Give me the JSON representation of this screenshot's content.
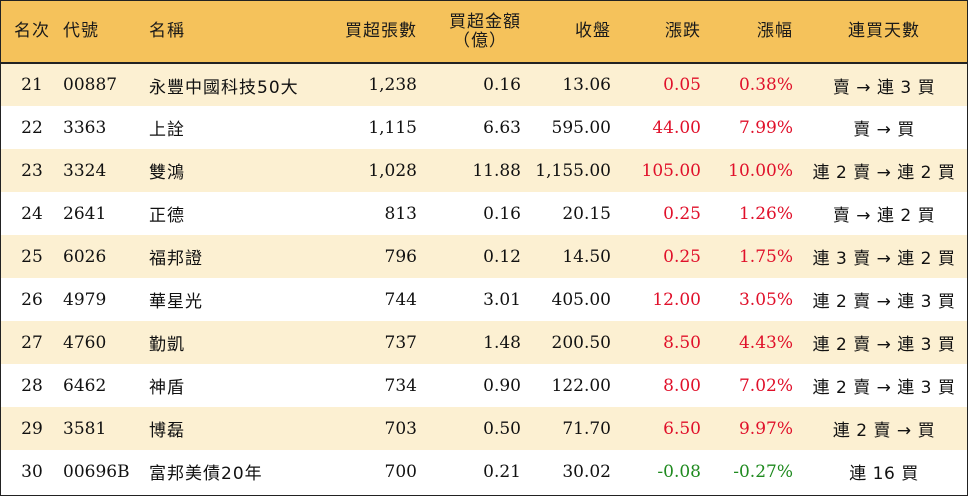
{
  "header": {
    "rank": "名次",
    "code": "代號",
    "name": "名稱",
    "net_buy_lots": "買超張數",
    "net_buy_amount_line1": "買超金額",
    "net_buy_amount_line2": "（億）",
    "close": "收盤",
    "change": "漲跌",
    "change_pct": "漲幅",
    "streak": "連買天數"
  },
  "colors": {
    "header_bg": "#f5c25b",
    "band_bg": "#fcf0d2",
    "up": "#e0102a",
    "down": "#1f8a1f"
  },
  "rows": [
    {
      "rank": "21",
      "code": "00887",
      "name": "永豐中國科技50大",
      "lots": "1,238",
      "amount": "0.16",
      "close": "13.06",
      "change": "0.05",
      "pct": "0.38%",
      "dir": "up",
      "streak": "賣 → 連 3 買"
    },
    {
      "rank": "22",
      "code": "3363",
      "name": "上詮",
      "lots": "1,115",
      "amount": "6.63",
      "close": "595.00",
      "change": "44.00",
      "pct": "7.99%",
      "dir": "up",
      "streak": "賣 → 買"
    },
    {
      "rank": "23",
      "code": "3324",
      "name": "雙鴻",
      "lots": "1,028",
      "amount": "11.88",
      "close": "1,155.00",
      "change": "105.00",
      "pct": "10.00%",
      "dir": "up",
      "streak": "連 2 賣 → 連 2 買"
    },
    {
      "rank": "24",
      "code": "2641",
      "name": "正德",
      "lots": "813",
      "amount": "0.16",
      "close": "20.15",
      "change": "0.25",
      "pct": "1.26%",
      "dir": "up",
      "streak": "賣 → 連 2 買"
    },
    {
      "rank": "25",
      "code": "6026",
      "name": "福邦證",
      "lots": "796",
      "amount": "0.12",
      "close": "14.50",
      "change": "0.25",
      "pct": "1.75%",
      "dir": "up",
      "streak": "連 3 賣 → 連 2 買"
    },
    {
      "rank": "26",
      "code": "4979",
      "name": "華星光",
      "lots": "744",
      "amount": "3.01",
      "close": "405.00",
      "change": "12.00",
      "pct": "3.05%",
      "dir": "up",
      "streak": "連 2 賣 → 連 3 買"
    },
    {
      "rank": "27",
      "code": "4760",
      "name": "勤凱",
      "lots": "737",
      "amount": "1.48",
      "close": "200.50",
      "change": "8.50",
      "pct": "4.43%",
      "dir": "up",
      "streak": "連 2 賣 → 連 3 買"
    },
    {
      "rank": "28",
      "code": "6462",
      "name": "神盾",
      "lots": "734",
      "amount": "0.90",
      "close": "122.00",
      "change": "8.00",
      "pct": "7.02%",
      "dir": "up",
      "streak": "連 2 賣 → 連 3 買"
    },
    {
      "rank": "29",
      "code": "3581",
      "name": "博磊",
      "lots": "703",
      "amount": "0.50",
      "close": "71.70",
      "change": "6.50",
      "pct": "9.97%",
      "dir": "up",
      "streak": "連 2 賣 → 買"
    },
    {
      "rank": "30",
      "code": "00696B",
      "name": "富邦美債20年",
      "lots": "700",
      "amount": "0.21",
      "close": "30.02",
      "change": "-0.08",
      "pct": "-0.27%",
      "dir": "down",
      "streak": "連 16 買"
    }
  ]
}
